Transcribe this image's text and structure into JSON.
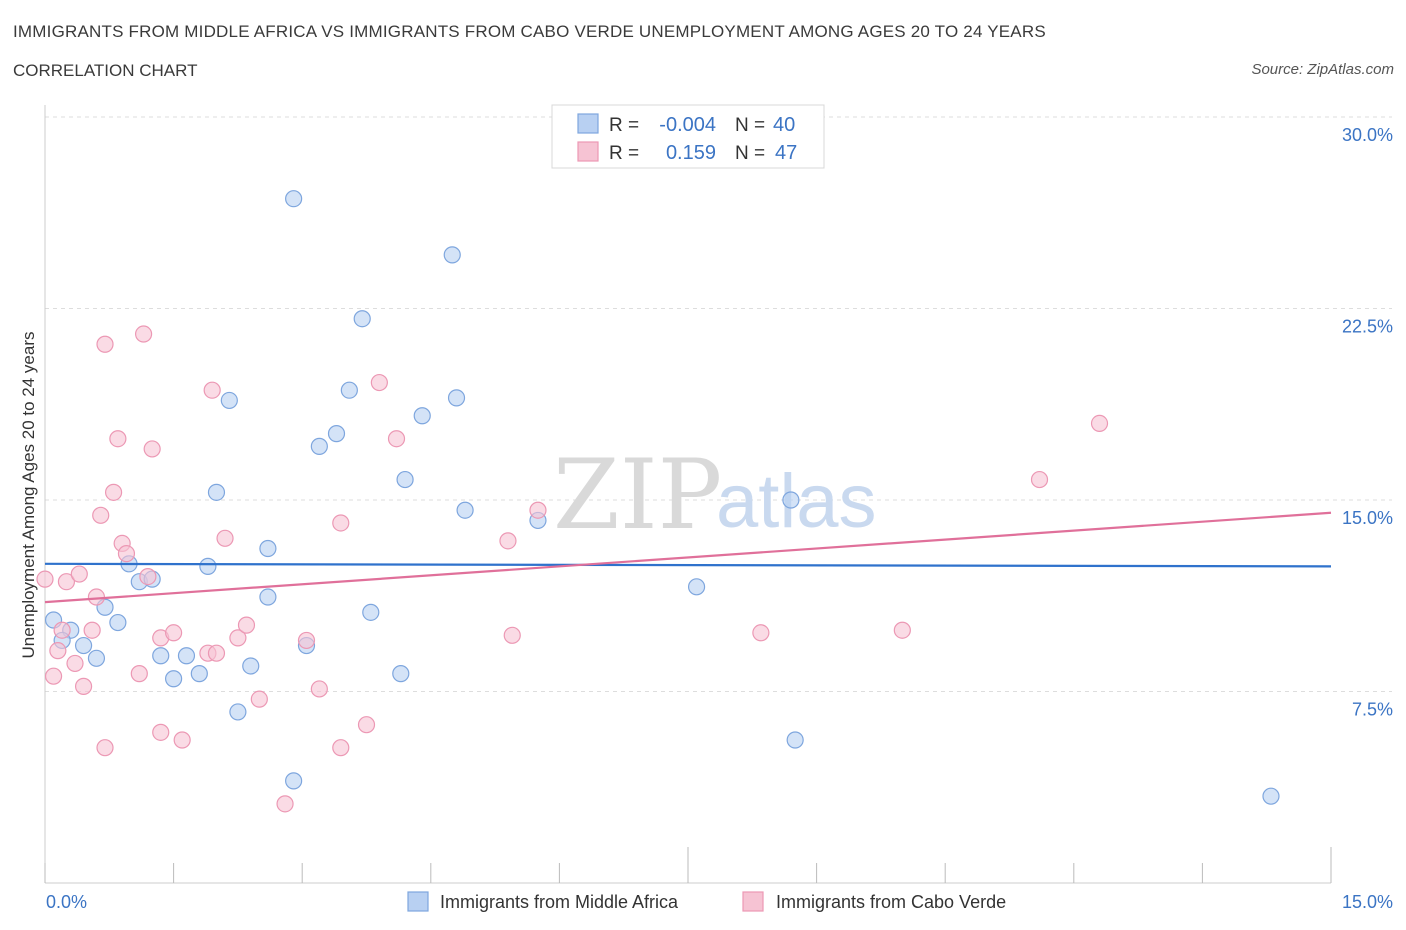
{
  "title": "IMMIGRANTS FROM MIDDLE AFRICA VS IMMIGRANTS FROM CABO VERDE UNEMPLOYMENT AMONG AGES 20 TO 24 YEARS",
  "subtitle": "CORRELATION CHART",
  "source": "Source: ZipAtlas.com",
  "watermark": {
    "part1": "ZIP",
    "part2": "atlas"
  },
  "colors": {
    "blue_fill": "#b8d0f2",
    "blue_stroke": "#7ea6de",
    "blue_line": "#2f72cc",
    "pink_fill": "#f6c3d3",
    "pink_stroke": "#ec98b4",
    "pink_line": "#e0709a",
    "tick_text": "#3b74c4",
    "grid": "#dddddd"
  },
  "legend_box": {
    "rows": [
      {
        "r_label": "R =",
        "r_value": "-0.004",
        "n_label": "N =",
        "n_value": "40"
      },
      {
        "r_label": "R =",
        "r_value": "0.159",
        "n_label": "N =",
        "n_value": "47"
      }
    ]
  },
  "bottom_legend": {
    "blue": "Immigrants from Middle Africa",
    "pink": "Immigrants from Cabo Verde"
  },
  "chart_data": {
    "type": "scatter",
    "xlabel": "",
    "ylabel": "Unemployment Among Ages 20 to 24 years",
    "xlim": [
      0,
      15
    ],
    "ylim": [
      0,
      30
    ],
    "x_tick_labels": {
      "left": "0.0%",
      "right": "15.0%"
    },
    "y_ticks": [
      {
        "value": 7.5,
        "label": "7.5%"
      },
      {
        "value": 15,
        "label": "15.0%"
      },
      {
        "value": 22.5,
        "label": "22.5%"
      },
      {
        "value": 30,
        "label": "30.0%"
      }
    ],
    "series": [
      {
        "name": "Immigrants from Middle Africa",
        "color": "blue",
        "trend": {
          "x": [
            0,
            15
          ],
          "y": [
            12.5,
            12.4
          ]
        },
        "points": [
          [
            0.1,
            10.3
          ],
          [
            0.3,
            9.9
          ],
          [
            0.2,
            9.5
          ],
          [
            0.45,
            9.3
          ],
          [
            0.6,
            8.8
          ],
          [
            0.7,
            10.8
          ],
          [
            0.85,
            10.2
          ],
          [
            0.98,
            12.5
          ],
          [
            1.1,
            11.8
          ],
          [
            1.25,
            11.9
          ],
          [
            1.35,
            8.9
          ],
          [
            1.5,
            8.0
          ],
          [
            1.65,
            8.9
          ],
          [
            1.8,
            8.2
          ],
          [
            1.9,
            12.4
          ],
          [
            2.0,
            15.3
          ],
          [
            2.15,
            18.9
          ],
          [
            2.25,
            6.7
          ],
          [
            2.4,
            8.5
          ],
          [
            2.6,
            11.2
          ],
          [
            2.6,
            13.1
          ],
          [
            2.9,
            4.0
          ],
          [
            2.9,
            26.8
          ],
          [
            3.05,
            9.3
          ],
          [
            3.2,
            17.1
          ],
          [
            3.4,
            17.6
          ],
          [
            3.55,
            19.3
          ],
          [
            3.7,
            22.1
          ],
          [
            3.8,
            10.6
          ],
          [
            4.15,
            8.2
          ],
          [
            4.2,
            15.8
          ],
          [
            4.4,
            18.3
          ],
          [
            4.75,
            24.6
          ],
          [
            4.8,
            19.0
          ],
          [
            4.9,
            14.6
          ],
          [
            5.75,
            14.2
          ],
          [
            7.6,
            11.6
          ],
          [
            8.7,
            15.0
          ],
          [
            8.75,
            5.6
          ],
          [
            14.3,
            3.4
          ]
        ]
      },
      {
        "name": "Immigrants from Cabo Verde",
        "color": "pink",
        "trend": {
          "x": [
            0,
            15
          ],
          "y": [
            11.0,
            14.5
          ]
        },
        "points": [
          [
            0.0,
            11.9
          ],
          [
            0.1,
            8.1
          ],
          [
            0.15,
            9.1
          ],
          [
            0.2,
            9.9
          ],
          [
            0.25,
            11.8
          ],
          [
            0.35,
            8.6
          ],
          [
            0.4,
            12.1
          ],
          [
            0.45,
            7.7
          ],
          [
            0.55,
            9.9
          ],
          [
            0.6,
            11.2
          ],
          [
            0.65,
            14.4
          ],
          [
            0.7,
            5.3
          ],
          [
            0.7,
            21.1
          ],
          [
            0.8,
            15.3
          ],
          [
            0.85,
            17.4
          ],
          [
            0.9,
            13.3
          ],
          [
            0.95,
            12.9
          ],
          [
            1.1,
            8.2
          ],
          [
            1.15,
            21.5
          ],
          [
            1.2,
            12.0
          ],
          [
            1.25,
            17.0
          ],
          [
            1.35,
            9.6
          ],
          [
            1.35,
            5.9
          ],
          [
            1.5,
            9.8
          ],
          [
            1.6,
            5.6
          ],
          [
            1.9,
            9.0
          ],
          [
            1.95,
            19.3
          ],
          [
            2.0,
            9.0
          ],
          [
            2.1,
            13.5
          ],
          [
            2.25,
            9.6
          ],
          [
            2.35,
            10.1
          ],
          [
            2.5,
            7.2
          ],
          [
            2.8,
            3.1
          ],
          [
            3.05,
            9.5
          ],
          [
            3.2,
            7.6
          ],
          [
            3.45,
            5.3
          ],
          [
            3.45,
            14.1
          ],
          [
            3.75,
            6.2
          ],
          [
            3.9,
            19.6
          ],
          [
            4.1,
            17.4
          ],
          [
            5.4,
            13.4
          ],
          [
            5.45,
            9.7
          ],
          [
            5.75,
            14.6
          ],
          [
            8.35,
            9.8
          ],
          [
            10.0,
            9.9
          ],
          [
            11.6,
            15.8
          ],
          [
            12.3,
            18.0
          ]
        ]
      }
    ]
  }
}
